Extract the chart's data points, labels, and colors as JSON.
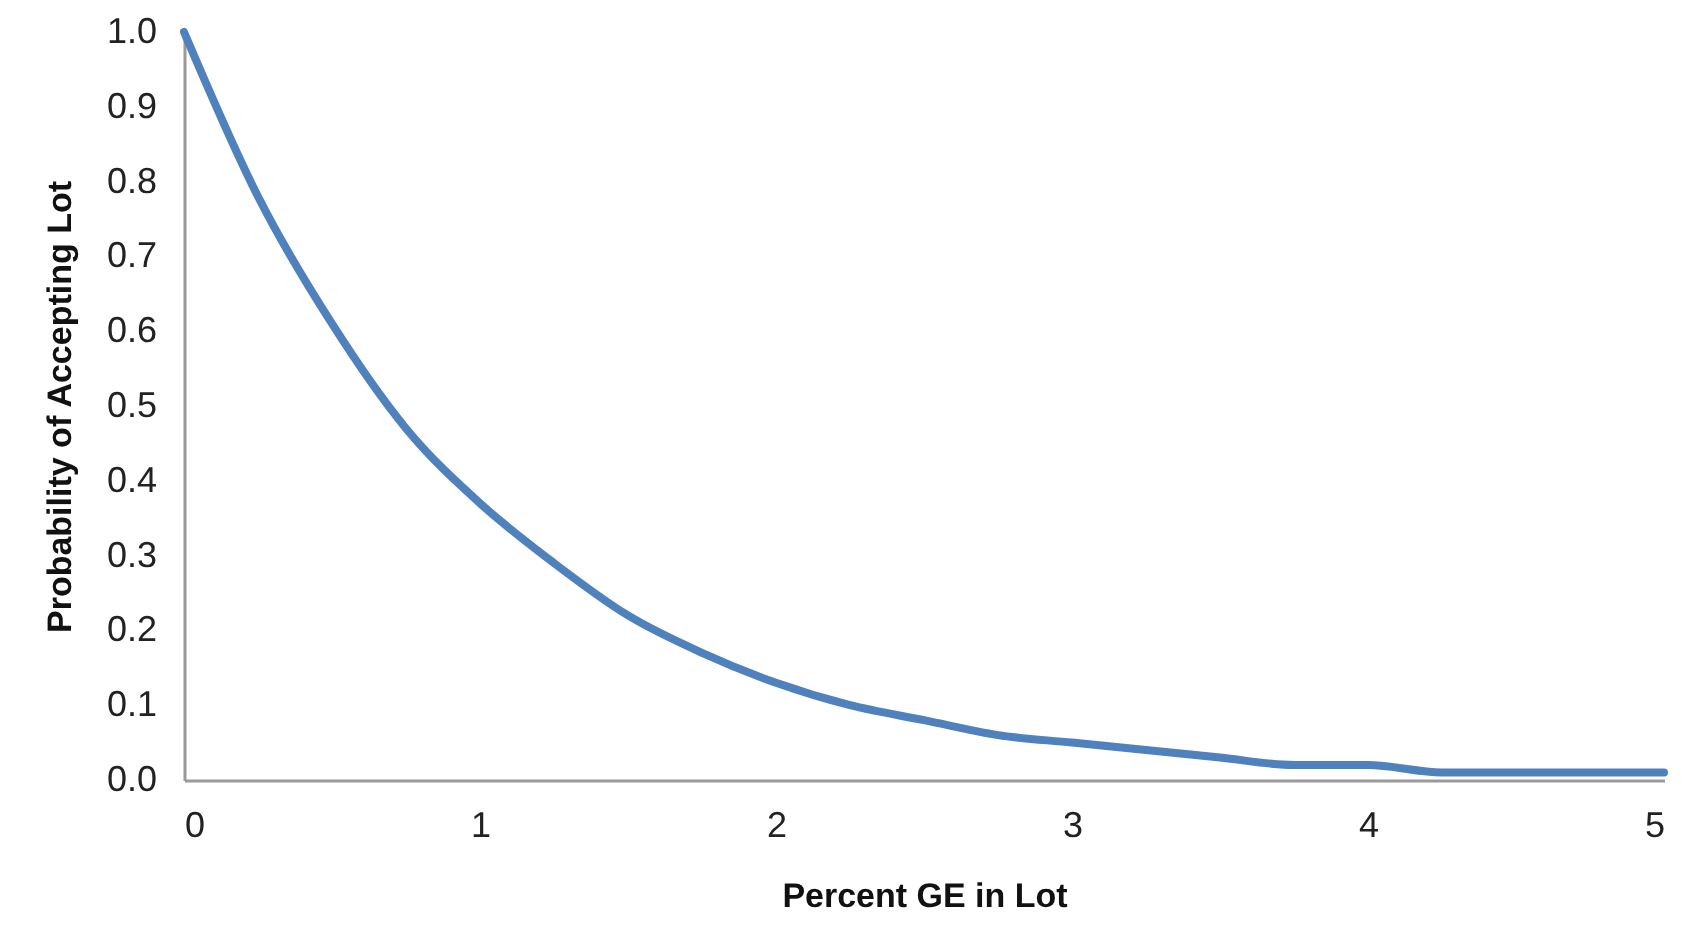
{
  "chart_data": {
    "type": "line",
    "xlabel": "Percent GE in Lot",
    "ylabel": "Probability of Accepting Lot",
    "x": [
      0,
      0.25,
      0.5,
      0.75,
      1,
      1.25,
      1.5,
      1.75,
      2,
      2.25,
      2.5,
      2.75,
      3,
      3.25,
      3.5,
      3.75,
      4,
      4.25,
      4.5,
      4.75,
      5
    ],
    "series": [
      {
        "color": "#4f81bd",
        "values": [
          1.0,
          0.78,
          0.61,
          0.47,
          0.37,
          0.29,
          0.22,
          0.17,
          0.13,
          0.1,
          0.08,
          0.06,
          0.05,
          0.04,
          0.03,
          0.02,
          0.02,
          0.01,
          0.01,
          0.01,
          0.01
        ]
      }
    ],
    "xlim": [
      0,
      5
    ],
    "xticks": [
      0,
      1,
      2,
      3,
      4,
      5
    ],
    "ylim": [
      0,
      1
    ],
    "yticks": [
      {
        "value": 0,
        "label": "0.0"
      },
      0.1,
      0.2,
      0.3,
      0.4,
      0.5,
      0.6,
      0.7,
      0.8,
      0.9,
      {
        "value": 1,
        "label": "1.0"
      }
    ],
    "grid": false,
    "line_style": "solid",
    "marker": "none"
  }
}
